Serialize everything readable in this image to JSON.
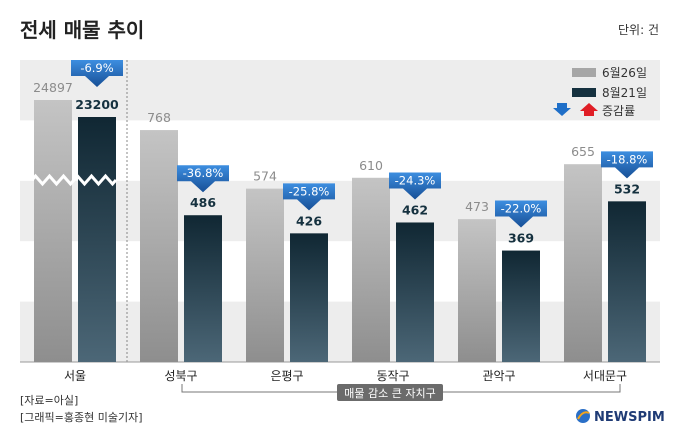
{
  "title": "전세 매물 추이",
  "unit_label": "단위: 건",
  "chart_data": {
    "type": "bar",
    "categories": [
      "서울",
      "성북구",
      "은평구",
      "동작구",
      "관악구",
      "서대문구"
    ],
    "series": [
      {
        "name": "6월26일",
        "values": [
          24897,
          768,
          574,
          610,
          473,
          655
        ]
      },
      {
        "name": "8월21일",
        "values": [
          23200,
          486,
          426,
          462,
          369,
          532
        ]
      }
    ],
    "change_rates": [
      "-6.9%",
      "-36.8%",
      "-25.8%",
      "-24.3%",
      "-22.0%",
      "-18.8%"
    ],
    "change_legend": "증감률",
    "axis_break": "서울 bars broken by zigzag (not to scale)",
    "ylim": [
      0,
      1000
    ],
    "bracket_label": "매물 감소 큰 자치구",
    "colors": {
      "series1": "#a6a6a6",
      "series2": "#15313f",
      "arrow_down": "#1f6fc8",
      "arrow_up": "#e01e26",
      "band": "#ededed"
    }
  },
  "source": "[자료=아실]",
  "credit": "[그래픽=홍종현 미술기자]",
  "brand": "NEWSPIM"
}
